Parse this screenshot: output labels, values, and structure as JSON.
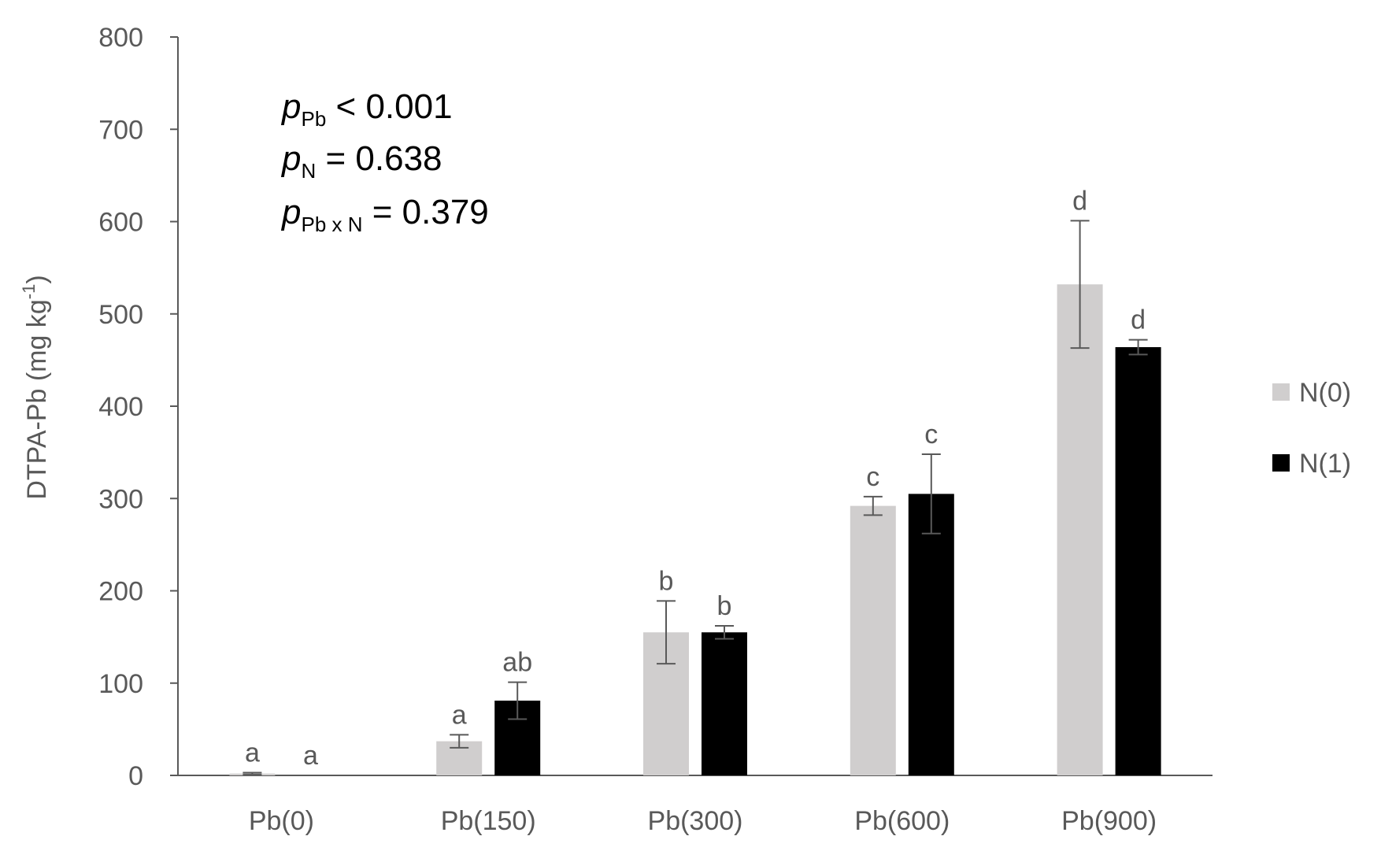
{
  "chart_data": {
    "type": "bar",
    "title": "",
    "ylabel": "DTPA-Pb (mg kg",
    "ylabel_sup": "-1",
    "ylabel_close": ")",
    "xlabel": "",
    "ylim": [
      0,
      800
    ],
    "yticks": [
      0,
      100,
      200,
      300,
      400,
      500,
      600,
      700,
      800
    ],
    "grid": false,
    "legend_position": "right",
    "categories": [
      "Pb(0)",
      "Pb(150)",
      "Pb(300)",
      "Pb(600)",
      "Pb(900)"
    ],
    "series": [
      {
        "name": "N(0)",
        "color": "#d0cece",
        "values": [
          2,
          37,
          155,
          292,
          532
        ],
        "errors": [
          1,
          7,
          34,
          10,
          69
        ],
        "letters": [
          "a",
          "a",
          "b",
          "c",
          "d"
        ]
      },
      {
        "name": "N(1)",
        "color": "#000000",
        "values": [
          0,
          81,
          155,
          305,
          464
        ],
        "errors": [
          0,
          20,
          7,
          43,
          8
        ],
        "letters": [
          "a",
          "ab",
          "b",
          "c",
          "d"
        ]
      }
    ],
    "annotations": [
      {
        "p": "p",
        "sub": "Pb",
        "rest": " < 0.001"
      },
      {
        "p": "p",
        "sub": "N",
        "rest": "  = 0.638"
      },
      {
        "p": "p",
        "sub": "Pb x N",
        "rest": " = 0.379"
      }
    ]
  },
  "colors": {
    "axis": "#595959",
    "errorbar": "#595959",
    "background": "#ffffff"
  }
}
